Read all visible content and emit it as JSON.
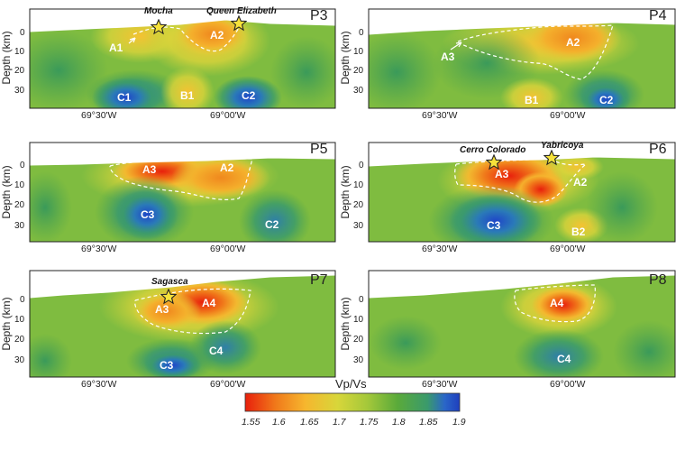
{
  "colorbar": {
    "title": "Vp/Vs",
    "ticks": [
      "1.55",
      "1.6",
      "1.65",
      "1.7",
      "1.75",
      "1.8",
      "1.85",
      "1.9"
    ],
    "colors": [
      "#e8200c",
      "#f0781a",
      "#f6b62e",
      "#d8d63a",
      "#a4c83a",
      "#5aaa3a",
      "#3a9a6c",
      "#2a66c8",
      "#1f3fbe"
    ]
  },
  "axes": {
    "ylabel": "Depth (km)",
    "yticks": [
      "0",
      "10",
      "20",
      "30"
    ],
    "xticks": [
      "69°30'W",
      "69°00'W"
    ]
  },
  "panels": [
    {
      "title": "P3",
      "stations": [
        "Mocha",
        "Queen Elizabeth"
      ],
      "labels": [
        "A1",
        "A2",
        "C1",
        "B1",
        "C2"
      ]
    },
    {
      "title": "P4",
      "stations": [],
      "labels": [
        "A3",
        "A2",
        "B1",
        "C2"
      ]
    },
    {
      "title": "P5",
      "stations": [],
      "labels": [
        "A3",
        "A2",
        "C3",
        "C2"
      ]
    },
    {
      "title": "P6",
      "stations": [
        "Cerro Colorado",
        "Yabricoya"
      ],
      "labels": [
        "A3",
        "A2",
        "C3",
        "B2"
      ]
    },
    {
      "title": "P7",
      "stations": [
        "Sagasca"
      ],
      "labels": [
        "A3",
        "A4",
        "C3",
        "C4"
      ]
    },
    {
      "title": "P8",
      "stations": [],
      "labels": [
        "A4",
        "C4"
      ]
    }
  ]
}
